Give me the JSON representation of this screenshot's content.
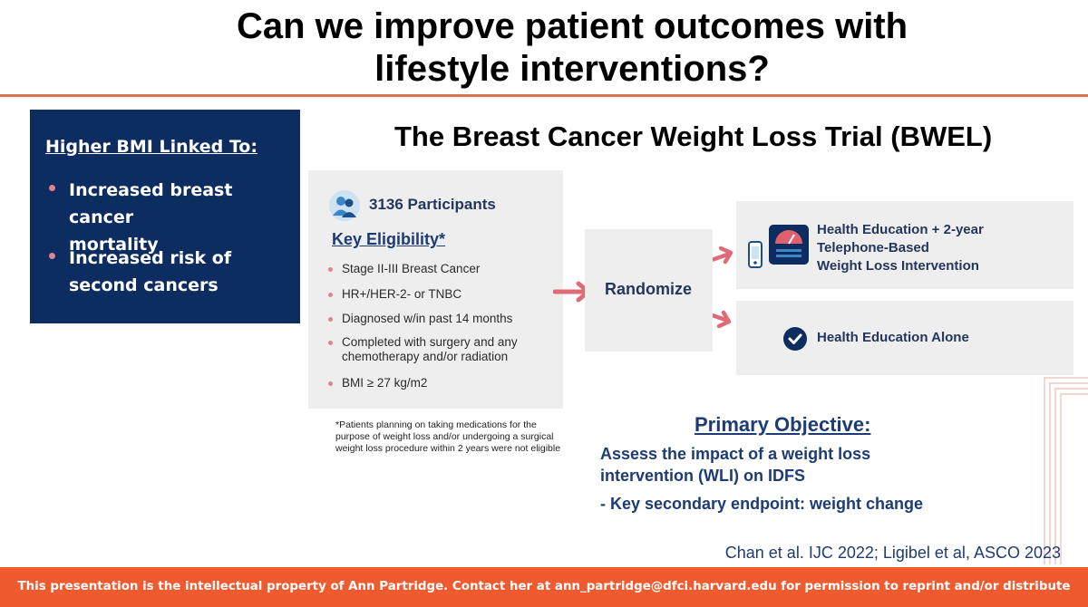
{
  "slide": {
    "title_line1": "Can we improve patient outcomes with",
    "title_line2": "lifestyle interventions?",
    "subtitle": "The Breast Cancer Weight Loss Trial (BWEL)"
  },
  "bmi_box": {
    "heading": "Higher BMI Linked To:",
    "items": [
      {
        "line1": "Increased breast cancer",
        "line2": "mortality"
      },
      {
        "line1": "Increased risk of",
        "line2": "second cancers"
      }
    ]
  },
  "eligibility": {
    "icon": "people-icon",
    "participants": "3136 Participants",
    "heading": "Key Eligibility*",
    "items": [
      {
        "line1": "Stage II-III Breast Cancer"
      },
      {
        "line1": "HR+/HER-2- or TNBC"
      },
      {
        "line1": "Diagnosed w/in past 14 months"
      },
      {
        "line1": "Completed with surgery and any",
        "line2": "chemotherapy and/or radiation"
      },
      {
        "line1": "BMI ≥ 27 kg/m2"
      }
    ],
    "footnote_lines": [
      "*Patients planning on taking medications for the",
      "purpose of weight loss and/or undergoing a surgical",
      "weight loss procedure within 2 years were not eligible"
    ]
  },
  "randomize": {
    "label": "Randomize"
  },
  "arms": {
    "arm1_lines": [
      "Health Education + 2-year",
      "Telephone-Based",
      "Weight Loss Intervention"
    ],
    "arm1_icons": [
      "phone-icon",
      "scale-icon"
    ],
    "arm2_label": "Health Education Alone",
    "arm2_icon": "check-circle-icon"
  },
  "primary_objective": {
    "heading": "Primary Objective:",
    "line1": "Assess the impact of a weight loss",
    "line2": "intervention (WLI) on IDFS",
    "secondary": "- Key secondary endpoint:  weight change"
  },
  "citation": "Chan et al. IJC 2022; Ligibel et al, ASCO 2023",
  "footer": "This presentation is the intellectual property of Ann Partridge. Contact her at ann_partridge@dfci.harvard.edu for permission to reprint and/or distribute",
  "colors": {
    "navy": "#0d2c5f",
    "accent_pink": "#e58292",
    "footer_orange": "#ef5b2f",
    "text_blue": "#1d3b75",
    "panel_gray": "#eeeeef"
  }
}
